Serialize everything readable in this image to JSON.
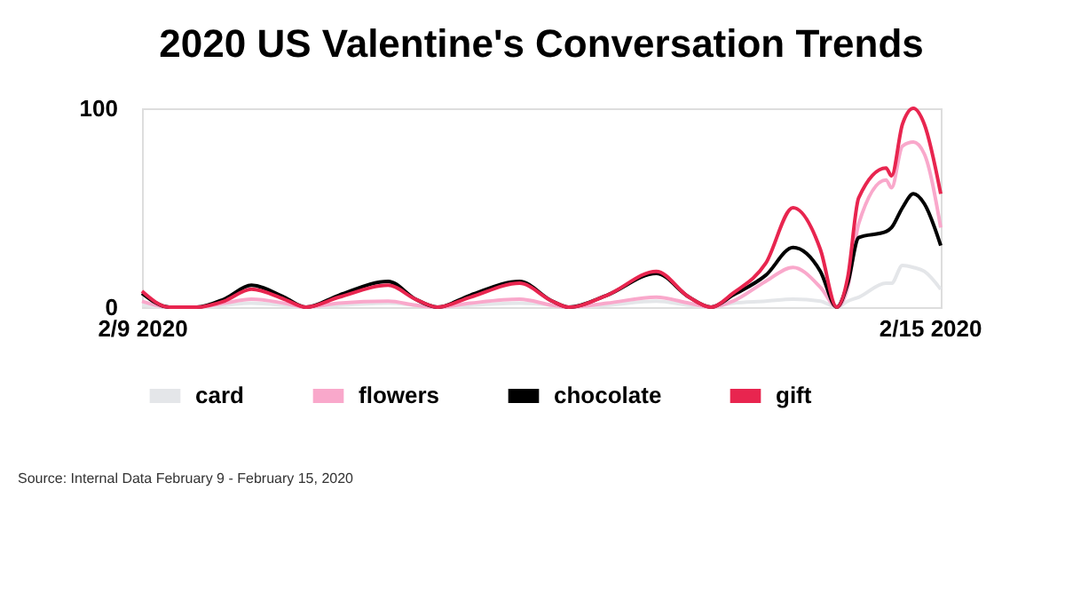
{
  "chart_data": {
    "type": "line",
    "title": "2020 US Valentine's Conversation Trends",
    "x": [
      "2020-02-09T00:00",
      "2020-02-09T05:00",
      "2020-02-09T10:00",
      "2020-02-09T15:00",
      "2020-02-09T20:00",
      "2020-02-10T02:00",
      "2020-02-10T06:00",
      "2020-02-10T12:00",
      "2020-02-10T21:00",
      "2020-02-11T02:00",
      "2020-02-11T06:00",
      "2020-02-11T12:00",
      "2020-02-11T21:00",
      "2020-02-12T03:00",
      "2020-02-12T06:00",
      "2020-02-12T13:00",
      "2020-02-12T22:00",
      "2020-02-13T04:00",
      "2020-02-13T08:00",
      "2020-02-13T12:00",
      "2020-02-13T18:00",
      "2020-02-13T23:00",
      "2020-02-14T04:00",
      "2020-02-14T07:00",
      "2020-02-14T09:00",
      "2020-02-14T11:00",
      "2020-02-14T16:00",
      "2020-02-14T17:00",
      "2020-02-14T19:00",
      "2020-02-14T21:00",
      "2020-02-14T23:00",
      "2020-02-15T02:00"
    ],
    "xlim": [
      "2020-02-09T00:00",
      "2020-02-15T02:00"
    ],
    "xticks": [
      {
        "value": "2020-02-09",
        "label": "2/9 2020"
      },
      {
        "value": "2020-02-15",
        "label": "2/15 2020"
      }
    ],
    "ylim": [
      0,
      100
    ],
    "yticks": [
      0,
      100
    ],
    "series": [
      {
        "name": "card",
        "color": "#e4e6e9",
        "values": [
          1,
          0,
          0,
          1,
          2,
          1,
          0,
          1,
          2,
          1,
          0,
          1,
          2,
          1,
          0,
          1,
          3,
          1,
          0,
          2,
          3,
          4,
          3,
          0,
          3,
          5,
          12,
          12,
          21,
          20,
          18,
          9
        ]
      },
      {
        "name": "flowers",
        "color": "#f9a8cb",
        "values": [
          3,
          0,
          0,
          2,
          4,
          2,
          0,
          2,
          3,
          1,
          0,
          2,
          4,
          1,
          0,
          2,
          5,
          2,
          0,
          3,
          13,
          20,
          10,
          0,
          10,
          42,
          64,
          60,
          81,
          83,
          77,
          40
        ]
      },
      {
        "name": "chocolate",
        "color": "#000000",
        "values": [
          7,
          0,
          0,
          4,
          11,
          5,
          0,
          6,
          13,
          4,
          0,
          6,
          13,
          3,
          0,
          6,
          17,
          5,
          0,
          6,
          16,
          30,
          18,
          0,
          12,
          35,
          38,
          40,
          50,
          57,
          52,
          31
        ]
      },
      {
        "name": "gift",
        "color": "#e8254f",
        "values": [
          8,
          0,
          0,
          3,
          9,
          4,
          0,
          5,
          11,
          4,
          0,
          5,
          12,
          3,
          0,
          6,
          18,
          5,
          0,
          7,
          22,
          50,
          29,
          0,
          15,
          55,
          70,
          66,
          92,
          100,
          92,
          57
        ]
      }
    ],
    "grid": false,
    "legend": "bottom",
    "marker": "none",
    "line_style": "solid",
    "annotations": [
      "Source: Internal Data February 9 - February 15, 2020"
    ]
  }
}
